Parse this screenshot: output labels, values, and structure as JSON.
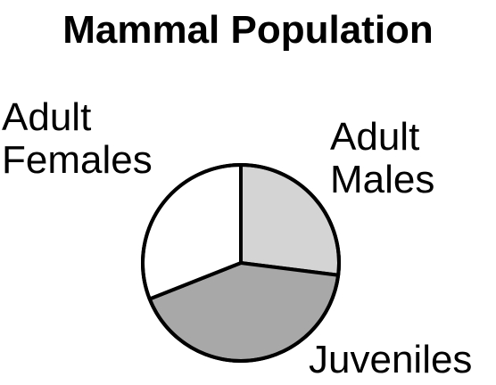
{
  "chart_data": {
    "type": "pie",
    "title": "Mammal Population",
    "slices": [
      {
        "label_lines": [
          "Adult",
          "Males"
        ],
        "value": 27,
        "color": "#d4d4d4"
      },
      {
        "label_lines": [
          "Juveniles"
        ],
        "value": 42,
        "color": "#a8a8a8"
      },
      {
        "label_lines": [
          "Adult",
          "Females"
        ],
        "value": 31,
        "color": "#ffffff"
      }
    ],
    "start_angle_deg": 0,
    "direction": "clockwise",
    "edge_color": "#000000",
    "legend": "none"
  }
}
